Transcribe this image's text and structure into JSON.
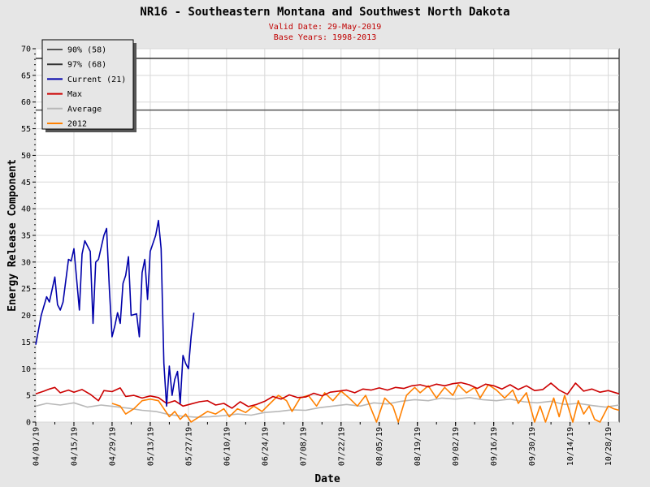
{
  "chart_data": {
    "type": "line",
    "title": "NR16 - Southeastern Montana and Southwest North Dakota",
    "subtitles": [
      "Valid Date: 29-May-2019",
      "Base Years: 1998-2013"
    ],
    "xlabel": "Date",
    "ylabel": "Energy Release Component",
    "ylim": [
      0,
      70
    ],
    "yticks": [
      0,
      5,
      10,
      15,
      20,
      25,
      30,
      35,
      40,
      45,
      50,
      55,
      60,
      65,
      70
    ],
    "xrange": [
      "2019-04-01",
      "2019-11-01"
    ],
    "xticks": [
      "04/01/19",
      "04/15/19",
      "04/29/19",
      "05/13/19",
      "05/27/19",
      "06/10/19",
      "06/24/19",
      "07/08/19",
      "07/22/19",
      "08/05/19",
      "08/19/19",
      "09/02/19",
      "09/16/19",
      "09/30/19",
      "10/14/19",
      "10/28/19"
    ],
    "grid": true,
    "legend_position": "top-left",
    "reference_lines": [
      {
        "name": "90% (58)",
        "value": 58.5,
        "color": "#555555"
      },
      {
        "name": "97% (68)",
        "value": 68.2,
        "color": "#333333"
      }
    ],
    "series": [
      {
        "name": "Current (21)",
        "color": "#0000aa",
        "points": [
          [
            "2019-04-01",
            14.5
          ],
          [
            "2019-04-03",
            20
          ],
          [
            "2019-04-05",
            23.5
          ],
          [
            "2019-04-06",
            22.5
          ],
          [
            "2019-04-08",
            27.2
          ],
          [
            "2019-04-09",
            22
          ],
          [
            "2019-04-10",
            21
          ],
          [
            "2019-04-11",
            22.5
          ],
          [
            "2019-04-13",
            30.5
          ],
          [
            "2019-04-14",
            30.2
          ],
          [
            "2019-04-15",
            32.5
          ],
          [
            "2019-04-17",
            21
          ],
          [
            "2019-04-18",
            31.5
          ],
          [
            "2019-04-19",
            34
          ],
          [
            "2019-04-21",
            32
          ],
          [
            "2019-04-22",
            18.5
          ],
          [
            "2019-04-23",
            30
          ],
          [
            "2019-04-24",
            30.5
          ],
          [
            "2019-04-26",
            35
          ],
          [
            "2019-04-27",
            36.3
          ],
          [
            "2019-04-28",
            25
          ],
          [
            "2019-04-29",
            16
          ],
          [
            "2019-04-30",
            18
          ],
          [
            "2019-05-01",
            20.5
          ],
          [
            "2019-05-02",
            18.5
          ],
          [
            "2019-05-03",
            26
          ],
          [
            "2019-05-04",
            27.5
          ],
          [
            "2019-05-05",
            31
          ],
          [
            "2019-05-06",
            20
          ],
          [
            "2019-05-08",
            20.3
          ],
          [
            "2019-05-09",
            16
          ],
          [
            "2019-05-10",
            28
          ],
          [
            "2019-05-11",
            30.5
          ],
          [
            "2019-05-12",
            23
          ],
          [
            "2019-05-13",
            32
          ],
          [
            "2019-05-15",
            35
          ],
          [
            "2019-05-16",
            37.8
          ],
          [
            "2019-05-17",
            32.5
          ],
          [
            "2019-05-18",
            11
          ],
          [
            "2019-05-19",
            3
          ],
          [
            "2019-05-20",
            10.5
          ],
          [
            "2019-05-21",
            5
          ],
          [
            "2019-05-22",
            8
          ],
          [
            "2019-05-23",
            9.5
          ],
          [
            "2019-05-24",
            3.5
          ],
          [
            "2019-05-25",
            12.5
          ],
          [
            "2019-05-26",
            11
          ],
          [
            "2019-05-27",
            10
          ],
          [
            "2019-05-28",
            16
          ],
          [
            "2019-05-29",
            20.5
          ]
        ]
      },
      {
        "name": "Max",
        "color": "#cc0000",
        "points": [
          [
            "2019-04-01",
            5.3
          ],
          [
            "2019-04-04",
            5.8
          ],
          [
            "2019-04-06",
            6.2
          ],
          [
            "2019-04-08",
            6.5
          ],
          [
            "2019-04-10",
            5.5
          ],
          [
            "2019-04-13",
            6.0
          ],
          [
            "2019-04-15",
            5.6
          ],
          [
            "2019-04-18",
            6.1
          ],
          [
            "2019-04-21",
            5.2
          ],
          [
            "2019-04-24",
            4.0
          ],
          [
            "2019-04-26",
            5.9
          ],
          [
            "2019-04-29",
            5.7
          ],
          [
            "2019-05-02",
            6.4
          ],
          [
            "2019-05-04",
            4.8
          ],
          [
            "2019-05-07",
            5.0
          ],
          [
            "2019-05-10",
            4.5
          ],
          [
            "2019-05-13",
            4.9
          ],
          [
            "2019-05-16",
            4.6
          ],
          [
            "2019-05-19",
            3.5
          ],
          [
            "2019-05-22",
            4.0
          ],
          [
            "2019-05-25",
            3.0
          ],
          [
            "2019-05-28",
            3.4
          ],
          [
            "2019-05-31",
            3.8
          ],
          [
            "2019-06-03",
            4.0
          ],
          [
            "2019-06-06",
            3.2
          ],
          [
            "2019-06-09",
            3.5
          ],
          [
            "2019-06-12",
            2.6
          ],
          [
            "2019-06-15",
            3.8
          ],
          [
            "2019-06-18",
            2.9
          ],
          [
            "2019-06-21",
            3.3
          ],
          [
            "2019-06-24",
            3.9
          ],
          [
            "2019-06-27",
            4.8
          ],
          [
            "2019-06-30",
            4.3
          ],
          [
            "2019-07-03",
            5.1
          ],
          [
            "2019-07-06",
            4.6
          ],
          [
            "2019-07-09",
            4.7
          ],
          [
            "2019-07-12",
            5.4
          ],
          [
            "2019-07-15",
            4.9
          ],
          [
            "2019-07-18",
            5.6
          ],
          [
            "2019-07-21",
            5.8
          ],
          [
            "2019-07-24",
            6.0
          ],
          [
            "2019-07-27",
            5.5
          ],
          [
            "2019-07-30",
            6.2
          ],
          [
            "2019-08-02",
            6.0
          ],
          [
            "2019-08-05",
            6.4
          ],
          [
            "2019-08-08",
            6.0
          ],
          [
            "2019-08-11",
            6.5
          ],
          [
            "2019-08-14",
            6.3
          ],
          [
            "2019-08-17",
            6.8
          ],
          [
            "2019-08-20",
            7.0
          ],
          [
            "2019-08-23",
            6.6
          ],
          [
            "2019-08-26",
            7.1
          ],
          [
            "2019-08-29",
            6.8
          ],
          [
            "2019-09-01",
            7.2
          ],
          [
            "2019-09-04",
            7.4
          ],
          [
            "2019-09-07",
            7.0
          ],
          [
            "2019-09-10",
            6.3
          ],
          [
            "2019-09-13",
            7.1
          ],
          [
            "2019-09-16",
            6.8
          ],
          [
            "2019-09-19",
            6.2
          ],
          [
            "2019-09-22",
            7.0
          ],
          [
            "2019-09-25",
            6.1
          ],
          [
            "2019-09-28",
            6.8
          ],
          [
            "2019-10-01",
            5.9
          ],
          [
            "2019-10-04",
            6.1
          ],
          [
            "2019-10-07",
            7.3
          ],
          [
            "2019-10-10",
            6.0
          ],
          [
            "2019-10-13",
            5.2
          ],
          [
            "2019-10-16",
            7.3
          ],
          [
            "2019-10-19",
            5.8
          ],
          [
            "2019-10-22",
            6.2
          ],
          [
            "2019-10-25",
            5.6
          ],
          [
            "2019-10-28",
            5.9
          ],
          [
            "2019-11-01",
            5.3
          ]
        ]
      },
      {
        "name": "Average",
        "color": "#b8b8b8",
        "points": [
          [
            "2019-04-01",
            3.0
          ],
          [
            "2019-04-05",
            3.5
          ],
          [
            "2019-04-10",
            3.2
          ],
          [
            "2019-04-15",
            3.6
          ],
          [
            "2019-04-20",
            2.8
          ],
          [
            "2019-04-25",
            3.2
          ],
          [
            "2019-04-30",
            2.9
          ],
          [
            "2019-05-05",
            2.6
          ],
          [
            "2019-05-10",
            2.2
          ],
          [
            "2019-05-15",
            2.0
          ],
          [
            "2019-05-20",
            1.4
          ],
          [
            "2019-05-25",
            1.1
          ],
          [
            "2019-05-30",
            0.9
          ],
          [
            "2019-06-04",
            1.0
          ],
          [
            "2019-06-09",
            1.2
          ],
          [
            "2019-06-14",
            1.5
          ],
          [
            "2019-06-19",
            1.3
          ],
          [
            "2019-06-24",
            1.8
          ],
          [
            "2019-06-29",
            2.0
          ],
          [
            "2019-07-04",
            2.3
          ],
          [
            "2019-07-09",
            2.2
          ],
          [
            "2019-07-14",
            2.7
          ],
          [
            "2019-07-19",
            3.0
          ],
          [
            "2019-07-24",
            3.3
          ],
          [
            "2019-07-29",
            3.0
          ],
          [
            "2019-08-03",
            3.6
          ],
          [
            "2019-08-08",
            3.4
          ],
          [
            "2019-08-13",
            3.9
          ],
          [
            "2019-08-18",
            4.2
          ],
          [
            "2019-08-23",
            4.0
          ],
          [
            "2019-08-28",
            4.5
          ],
          [
            "2019-09-02",
            4.3
          ],
          [
            "2019-09-07",
            4.6
          ],
          [
            "2019-09-12",
            4.2
          ],
          [
            "2019-09-17",
            4.0
          ],
          [
            "2019-09-22",
            4.3
          ],
          [
            "2019-09-27",
            3.8
          ],
          [
            "2019-10-02",
            3.6
          ],
          [
            "2019-10-07",
            3.9
          ],
          [
            "2019-10-12",
            3.3
          ],
          [
            "2019-10-17",
            3.5
          ],
          [
            "2019-10-22",
            3.1
          ],
          [
            "2019-10-27",
            2.8
          ],
          [
            "2019-11-01",
            3.2
          ]
        ]
      },
      {
        "name": "2012",
        "color": "#ff8000",
        "points": [
          [
            "2019-04-29",
            3.5
          ],
          [
            "2019-05-02",
            3.0
          ],
          [
            "2019-05-04",
            1.5
          ],
          [
            "2019-05-07",
            2.5
          ],
          [
            "2019-05-10",
            4.0
          ],
          [
            "2019-05-13",
            4.3
          ],
          [
            "2019-05-16",
            4.0
          ],
          [
            "2019-05-18",
            2.5
          ],
          [
            "2019-05-20",
            1.0
          ],
          [
            "2019-05-22",
            2.0
          ],
          [
            "2019-05-24",
            0.5
          ],
          [
            "2019-05-26",
            1.5
          ],
          [
            "2019-05-28",
            0
          ],
          [
            "2019-05-31",
            1.0
          ],
          [
            "2019-06-03",
            2.0
          ],
          [
            "2019-06-06",
            1.5
          ],
          [
            "2019-06-09",
            2.5
          ],
          [
            "2019-06-11",
            1.0
          ],
          [
            "2019-06-14",
            2.5
          ],
          [
            "2019-06-17",
            1.8
          ],
          [
            "2019-06-20",
            3.0
          ],
          [
            "2019-06-23",
            2.0
          ],
          [
            "2019-06-26",
            3.5
          ],
          [
            "2019-06-29",
            5.0
          ],
          [
            "2019-07-02",
            4.0
          ],
          [
            "2019-07-04",
            2.0
          ],
          [
            "2019-07-07",
            4.5
          ],
          [
            "2019-07-10",
            5.0
          ],
          [
            "2019-07-13",
            3.0
          ],
          [
            "2019-07-16",
            5.5
          ],
          [
            "2019-07-19",
            4.0
          ],
          [
            "2019-07-22",
            5.8
          ],
          [
            "2019-07-25",
            4.5
          ],
          [
            "2019-07-28",
            3.0
          ],
          [
            "2019-07-31",
            5.0
          ],
          [
            "2019-08-02",
            2.5
          ],
          [
            "2019-08-04",
            0
          ],
          [
            "2019-08-07",
            4.5
          ],
          [
            "2019-08-10",
            3.0
          ],
          [
            "2019-08-12",
            0
          ],
          [
            "2019-08-15",
            5.0
          ],
          [
            "2019-08-18",
            6.5
          ],
          [
            "2019-08-20",
            5.5
          ],
          [
            "2019-08-23",
            6.8
          ],
          [
            "2019-08-26",
            4.5
          ],
          [
            "2019-08-29",
            6.5
          ],
          [
            "2019-09-01",
            5.0
          ],
          [
            "2019-09-03",
            7.0
          ],
          [
            "2019-09-06",
            5.5
          ],
          [
            "2019-09-09",
            6.5
          ],
          [
            "2019-09-11",
            4.5
          ],
          [
            "2019-09-14",
            7.0
          ],
          [
            "2019-09-17",
            6.0
          ],
          [
            "2019-09-20",
            4.5
          ],
          [
            "2019-09-23",
            6.0
          ],
          [
            "2019-09-25",
            3.5
          ],
          [
            "2019-09-28",
            5.5
          ],
          [
            "2019-10-01",
            0
          ],
          [
            "2019-10-03",
            3.0
          ],
          [
            "2019-10-05",
            0
          ],
          [
            "2019-10-08",
            4.5
          ],
          [
            "2019-10-10",
            1.0
          ],
          [
            "2019-10-12",
            5.0
          ],
          [
            "2019-10-15",
            0
          ],
          [
            "2019-10-17",
            4.0
          ],
          [
            "2019-10-19",
            1.5
          ],
          [
            "2019-10-21",
            3.0
          ],
          [
            "2019-10-23",
            0.5
          ],
          [
            "2019-10-25",
            0
          ],
          [
            "2019-10-28",
            3.0
          ],
          [
            "2019-10-30",
            2.5
          ],
          [
            "2019-11-01",
            2.2
          ]
        ]
      }
    ]
  }
}
